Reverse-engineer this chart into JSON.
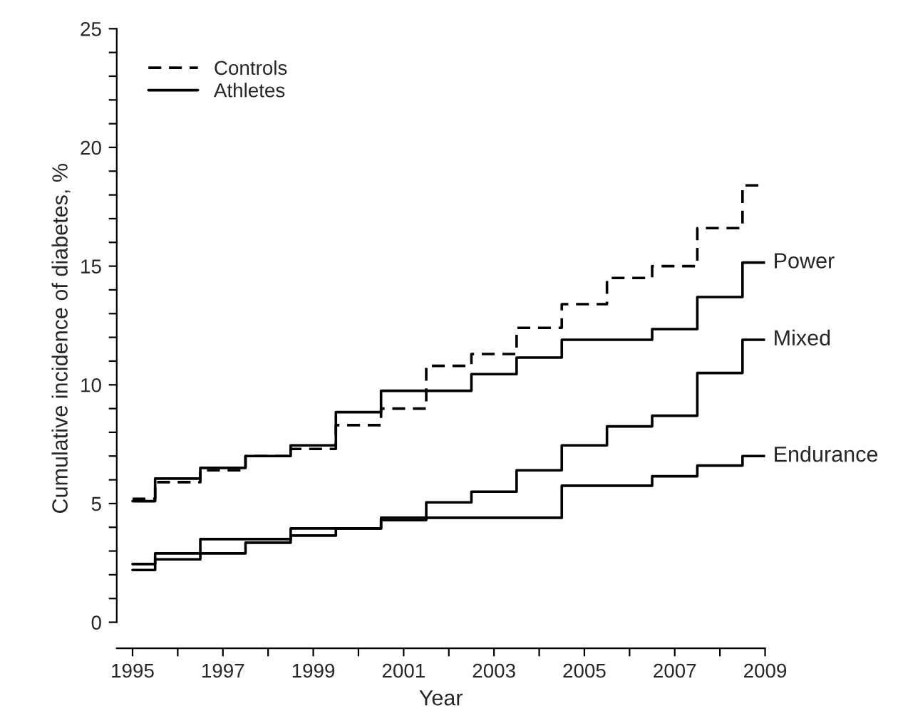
{
  "chart_data": {
    "type": "step",
    "xlabel": "Year",
    "ylabel": "Cumulative incidence of diabetes, %",
    "x": [
      1995,
      1995.5,
      1996.5,
      1997.5,
      1998.5,
      1999.5,
      2000.5,
      2001.5,
      2002.5,
      2003.5,
      2004.5,
      2005.5,
      2006.5,
      2007.5,
      2008.5,
      2009
    ],
    "series": [
      {
        "name": "Controls",
        "color": "#000000",
        "line_style": "dashed",
        "values": [
          5.2,
          5.9,
          6.4,
          7.0,
          7.3,
          8.3,
          9.0,
          10.8,
          11.3,
          12.4,
          13.4,
          14.5,
          15.0,
          16.6,
          18.4,
          18.4
        ]
      },
      {
        "name": "Power",
        "color": "#000000",
        "line_style": "solid",
        "values": [
          5.1,
          6.05,
          6.5,
          7.0,
          7.45,
          8.85,
          9.75,
          9.75,
          10.45,
          11.15,
          11.9,
          11.9,
          12.35,
          13.7,
          15.15,
          15.15
        ]
      },
      {
        "name": "Mixed",
        "color": "#000000",
        "line_style": "solid",
        "values": [
          2.2,
          2.65,
          2.9,
          3.35,
          3.65,
          3.95,
          4.3,
          5.05,
          5.5,
          6.4,
          7.45,
          8.25,
          8.7,
          10.5,
          11.9,
          11.9
        ]
      },
      {
        "name": "Endurance",
        "color": "#000000",
        "line_style": "solid",
        "values": [
          2.45,
          2.9,
          3.5,
          3.5,
          3.95,
          3.95,
          4.4,
          4.4,
          4.4,
          4.4,
          5.75,
          5.75,
          6.15,
          6.6,
          7.0,
          7.0
        ]
      }
    ],
    "annotations": [
      "Athletes"
    ],
    "legend": "top left",
    "grid": false,
    "xlim": [
      1994.65,
      2009
    ],
    "xticks": [
      1995,
      {
        "value": 1996,
        "label": null
      },
      1997,
      {
        "value": 1998,
        "label": null
      },
      1999,
      {
        "value": 2000,
        "label": null
      },
      2001,
      {
        "value": 2002,
        "label": null
      },
      2003,
      {
        "value": 2004,
        "label": null
      },
      2005,
      {
        "value": 2006,
        "label": null
      },
      2007,
      {
        "value": 2008,
        "label": null
      },
      2009
    ],
    "ylim": [
      -1.1,
      25
    ],
    "yticks": [
      0,
      {
        "value": 1,
        "label": null
      },
      {
        "value": 2,
        "label": null
      },
      {
        "value": 3,
        "label": null
      },
      {
        "value": 4,
        "label": null
      },
      5,
      {
        "value": 6,
        "label": null
      },
      {
        "value": 7,
        "label": null
      },
      {
        "value": 8,
        "label": null
      },
      {
        "value": 9,
        "label": null
      },
      10,
      {
        "value": 11,
        "label": null
      },
      {
        "value": 12,
        "label": null
      },
      {
        "value": 13,
        "label": null
      },
      {
        "value": 14,
        "label": null
      },
      15,
      {
        "value": 16,
        "label": null
      },
      {
        "value": 17,
        "label": null
      },
      {
        "value": 18,
        "label": null
      },
      {
        "value": 19,
        "label": null
      },
      20,
      {
        "value": 21,
        "label": null
      },
      {
        "value": 22,
        "label": null
      },
      {
        "value": 23,
        "label": null
      },
      {
        "value": 24,
        "label": null
      },
      25
    ]
  }
}
